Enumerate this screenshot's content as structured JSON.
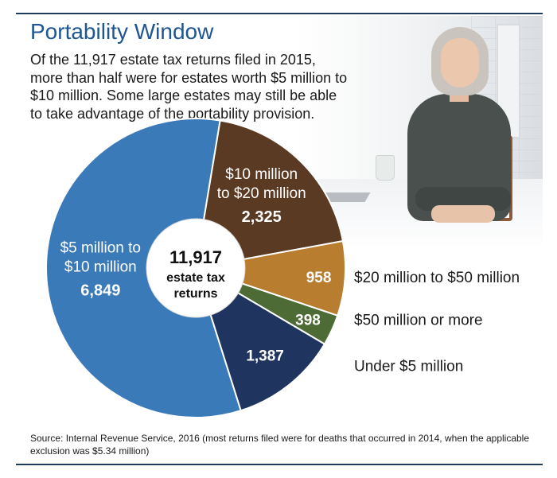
{
  "header": {
    "title": "Portability Window",
    "intro": "Of the 11,917 estate tax returns filed in 2015, more than half were for estates worth $5 million to $10 million. Some large estates may still be able to take advantage of the portability provision."
  },
  "chart_data": {
    "type": "pie",
    "title": "Portability Window",
    "total": 11917,
    "center_label": {
      "value": "11,917",
      "line1": "estate tax",
      "line2": "returns"
    },
    "slices": [
      {
        "name": "$10 million to $20 million",
        "label_lines": [
          "$10 million",
          "to $20 million"
        ],
        "value": 2325,
        "value_label": "2,325",
        "color": "#5b3a23"
      },
      {
        "name": "$20 million to $50 million",
        "label_lines": [
          "$20 million to $50 million"
        ],
        "value": 958,
        "value_label": "958",
        "color": "#b87d2e"
      },
      {
        "name": "$50 million or more",
        "label_lines": [
          "$50 million or more"
        ],
        "value": 398,
        "value_label": "398",
        "color": "#4d6b35"
      },
      {
        "name": "Under $5 million",
        "label_lines": [
          "Under $5 million"
        ],
        "value": 1387,
        "value_label": "1,387",
        "color": "#1f3560"
      },
      {
        "name": "$5 million to $10 million",
        "label_lines": [
          "$5 million to",
          "$10 million"
        ],
        "value": 6849,
        "value_label": "6,849",
        "color": "#3a7ab8"
      }
    ]
  },
  "footer": {
    "source": "Source:  Internal Revenue Service, 2016 (most returns filed were for deaths that occurred in 2014, when the applicable exclusion was $5.34 million)"
  }
}
